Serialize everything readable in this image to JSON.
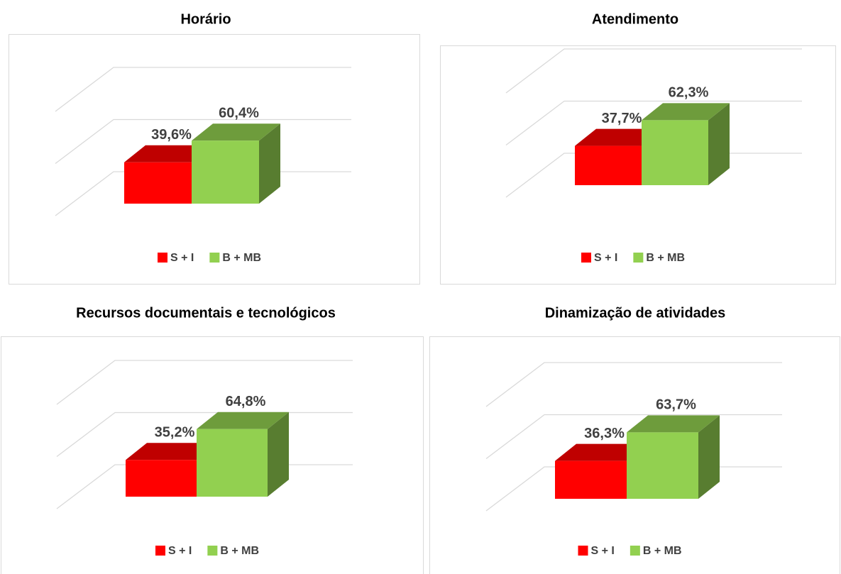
{
  "chart_data": [
    {
      "type": "bar",
      "title": "Horário",
      "categories": [
        null
      ],
      "ylim": [
        0,
        100
      ],
      "yticks": [
        0,
        50,
        100
      ],
      "grid": true,
      "series": [
        {
          "name": "S + I",
          "color": "#ff0000",
          "values": [
            39.6
          ],
          "value_labels": [
            "39,6%"
          ]
        },
        {
          "name": "B + MB",
          "color": "#92d050",
          "values": [
            60.4
          ],
          "value_labels": [
            "60,4%"
          ]
        }
      ]
    },
    {
      "type": "bar",
      "title": "Atendimento",
      "categories": [
        null
      ],
      "ylim": [
        0,
        100
      ],
      "yticks": [
        0,
        50,
        100
      ],
      "grid": true,
      "series": [
        {
          "name": "S + I",
          "color": "#ff0000",
          "values": [
            37.7
          ],
          "value_labels": [
            "37,7%"
          ]
        },
        {
          "name": "B + MB",
          "color": "#92d050",
          "values": [
            62.3
          ],
          "value_labels": [
            "62,3%"
          ]
        }
      ]
    },
    {
      "type": "bar",
      "title": "Recursos documentais e tecnológicos",
      "categories": [
        null
      ],
      "ylim": [
        0,
        100
      ],
      "yticks": [
        0,
        50,
        100
      ],
      "grid": true,
      "series": [
        {
          "name": "S + I",
          "color": "#ff0000",
          "values": [
            35.2
          ],
          "value_labels": [
            "35,2%"
          ]
        },
        {
          "name": "B + MB",
          "color": "#92d050",
          "values": [
            64.8
          ],
          "value_labels": [
            "64,8%"
          ]
        }
      ]
    },
    {
      "type": "bar",
      "title": "Dinamização de atividades",
      "categories": [
        null
      ],
      "ylim": [
        0,
        100
      ],
      "yticks": [
        0,
        50,
        100
      ],
      "grid": true,
      "series": [
        {
          "name": "S + I",
          "color": "#ff0000",
          "values": [
            36.3
          ],
          "value_labels": [
            "36,3%"
          ]
        },
        {
          "name": "B + MB",
          "color": "#92d050",
          "values": [
            63.7
          ],
          "value_labels": [
            "63,7%"
          ]
        }
      ]
    }
  ]
}
